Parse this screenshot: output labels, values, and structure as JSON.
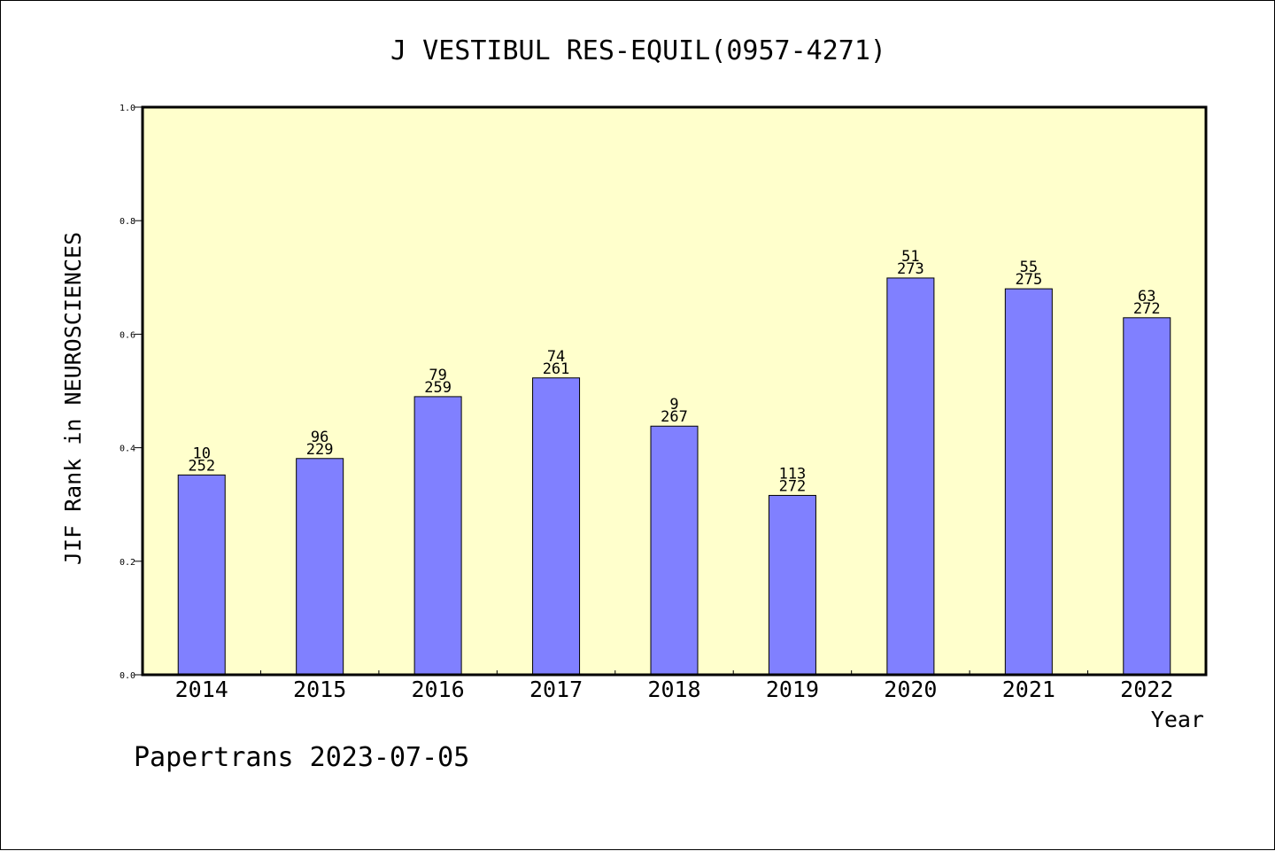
{
  "chart_data": {
    "type": "bar",
    "title": "J VESTIBUL RES-EQUIL(0957-4271)",
    "xlabel": "Year",
    "ylabel": "JIF Rank in NEUROSCIENCES",
    "ylim": [
      0,
      1.0
    ],
    "yticks": [
      "0.0",
      "0.2",
      "0.4",
      "0.6",
      "0.8",
      "1.0"
    ],
    "categories": [
      "2014",
      "2015",
      "2016",
      "2017",
      "2018",
      "2019",
      "2020",
      "2021",
      "2022"
    ],
    "values": [
      0.352,
      0.381,
      0.49,
      0.523,
      0.438,
      0.316,
      0.699,
      0.68,
      0.629
    ],
    "rank": [
      "10",
      "96",
      "79",
      "74",
      "9",
      "113",
      "51",
      "55",
      "63"
    ],
    "total": [
      "252",
      "229",
      "259",
      "261",
      "267",
      "272",
      "273",
      "275",
      "272"
    ],
    "plot_background": "#ffffcc",
    "bar_color": "#8080ff",
    "grid": false
  },
  "footer": {
    "text": "Papertrans 2023-07-05"
  }
}
